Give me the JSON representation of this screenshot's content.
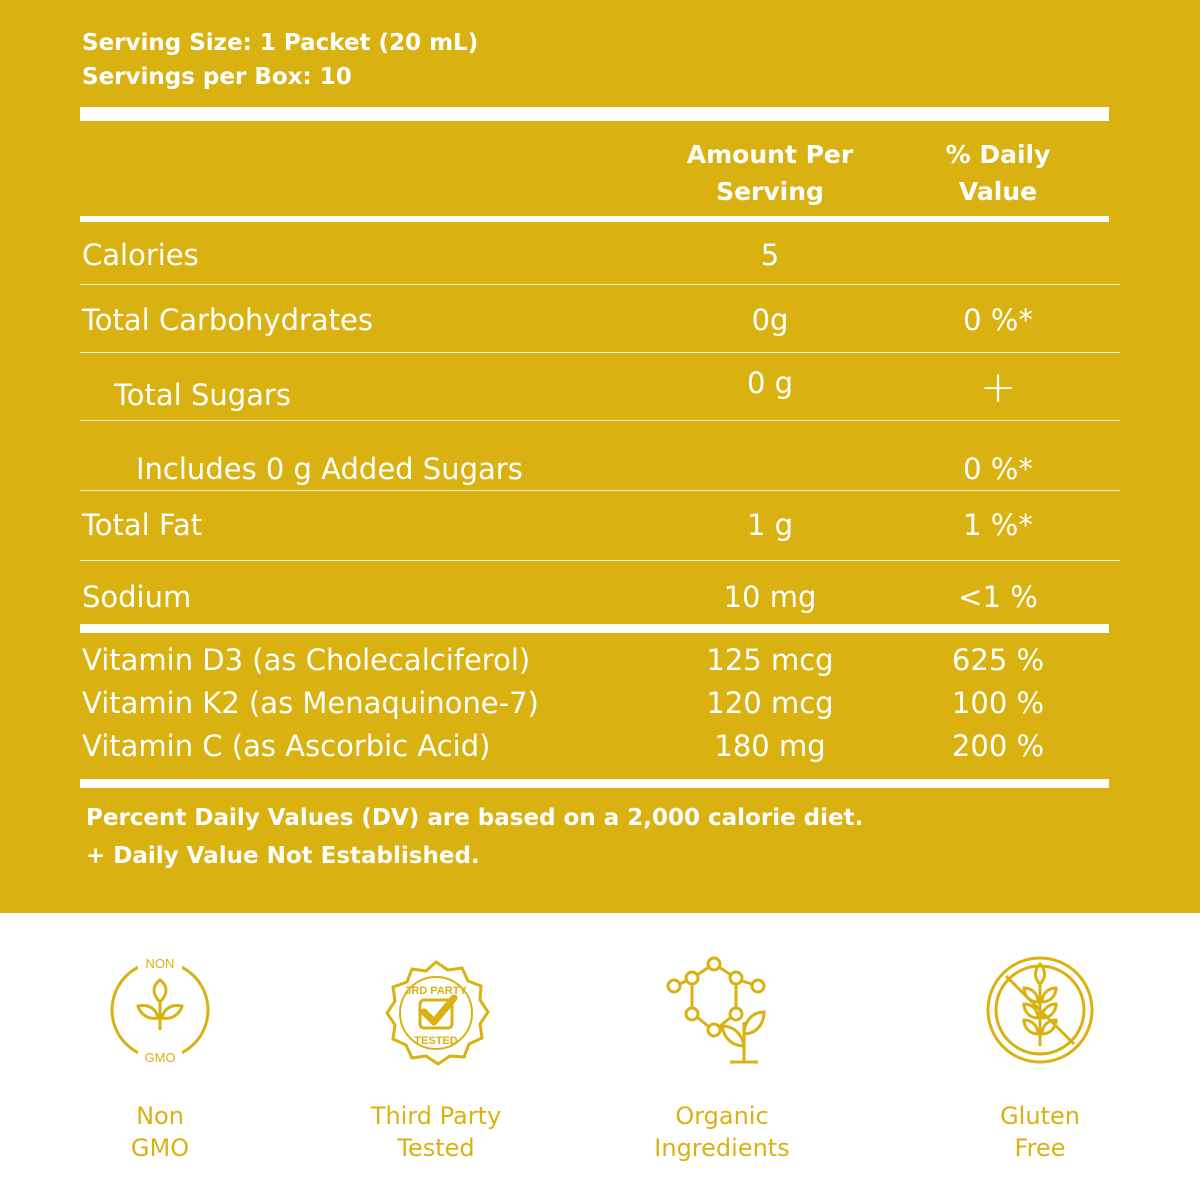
{
  "serving": {
    "size": "Serving Size: 1 Packet (20 mL)",
    "per_box": "Servings per Box: 10"
  },
  "columns": {
    "amount_line1": "Amount Per",
    "amount_line2": "Serving",
    "dv_line1": "% Daily",
    "dv_line2": "Value"
  },
  "rows": [
    {
      "name": "Calories",
      "amount": "5",
      "dv": ""
    },
    {
      "name": "Total Carbohydrates",
      "amount": "0g",
      "dv": "0 %*"
    },
    {
      "name": "Total Sugars",
      "amount": "0 g",
      "dv": "+"
    },
    {
      "name": "Includes 0 g Added Sugars",
      "amount": "",
      "dv": "0 %*"
    },
    {
      "name": "Total Fat",
      "amount": "1 g",
      "dv": "1 %*"
    },
    {
      "name": "Sodium",
      "amount": "10 mg",
      "dv": "<1 %"
    }
  ],
  "vitamins": [
    {
      "name": "Vitamin D3 (as Cholecalciferol)",
      "amount": "125 mcg",
      "dv": "625 %"
    },
    {
      "name": "Vitamin K2 (as Menaquinone-7)",
      "amount": "120 mcg",
      "dv": "100 %"
    },
    {
      "name": "Vitamin C (as Ascorbic Acid)",
      "amount": "180 mg",
      "dv": "200 %"
    }
  ],
  "footnotes": {
    "line1": "Percent Daily Values (DV) are based on a 2,000 calorie diet.",
    "line2": "+ Daily Value Not Established."
  },
  "badges": [
    {
      "icon": "non-gmo-icon",
      "line1": "Non",
      "line2": "GMO",
      "ring_top": "NON",
      "ring_bottom": "GMO"
    },
    {
      "icon": "third-party-tested-icon",
      "line1": "Third Party",
      "line2": "Tested",
      "ring_top": "3RD PARTY",
      "ring_bottom": "TESTED"
    },
    {
      "icon": "organic-ingredients-icon",
      "line1": "Organic",
      "line2": "Ingredients"
    },
    {
      "icon": "gluten-free-icon",
      "line1": "Gluten",
      "line2": "Free"
    }
  ],
  "colors": {
    "panel": "#d9b212",
    "text": "#ffffff",
    "accent": "#d9b212"
  }
}
